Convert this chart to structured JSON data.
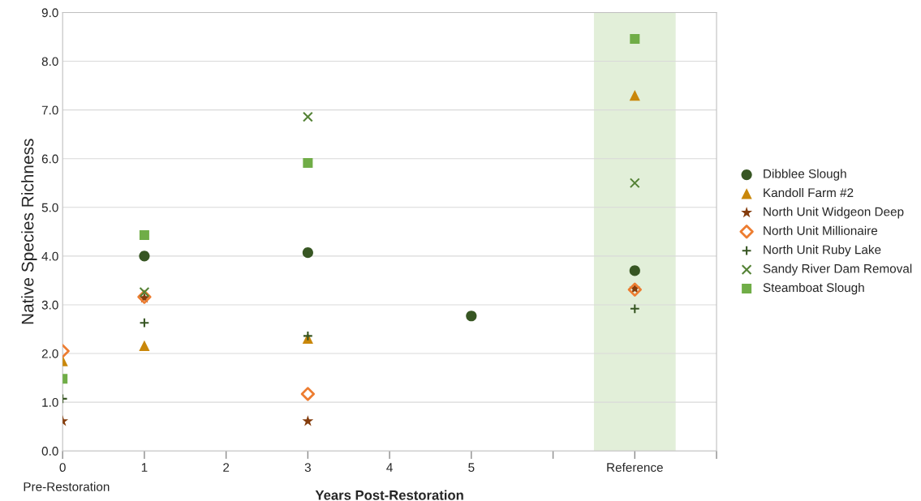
{
  "chart_data": {
    "type": "scatter",
    "xlabel": "Years Post-Restoration",
    "ylabel": "Native Species Richness",
    "annotations": [
      "Pre-Restoration"
    ],
    "xlim": [
      0,
      8
    ],
    "xticks": [
      0,
      1,
      2,
      3,
      4,
      5,
      {
        "value": 6,
        "label": null
      },
      {
        "value": 7,
        "label": "Reference"
      },
      {
        "value": 8,
        "label": null
      }
    ],
    "ylim": [
      0,
      9
    ],
    "yticks": [
      {
        "value": 0,
        "label": "0.0"
      },
      {
        "value": 1,
        "label": "1.0"
      },
      {
        "value": 2,
        "label": "2.0"
      },
      {
        "value": 3,
        "label": "3.0"
      },
      {
        "value": 4,
        "label": "4.0"
      },
      {
        "value": 5,
        "label": "5.0"
      },
      {
        "value": 6,
        "label": "6.0"
      },
      {
        "value": 7,
        "label": "7.0"
      },
      {
        "value": 8,
        "label": "8.0"
      },
      {
        "value": 9,
        "label": "9.0"
      }
    ],
    "grid": "y",
    "legend": "right",
    "bands": [
      {
        "axis": "x",
        "from": 6.5,
        "to": 7.5,
        "color": "#e2efd9"
      }
    ],
    "series": [
      {
        "name": "Dibblee Slough",
        "color": "#375623",
        "marker": "circle",
        "x": [
          1,
          3,
          5,
          7
        ],
        "values": [
          4.0,
          4.07,
          2.77,
          3.7
        ]
      },
      {
        "name": "Kandoll Farm #2",
        "color": "#c9870a",
        "marker": "triangle",
        "x": [
          0,
          1,
          3,
          7
        ],
        "values": [
          1.85,
          2.16,
          2.31,
          7.3
        ]
      },
      {
        "name": "North Unit Widgeon Deep",
        "color": "#843c0c",
        "marker": "star",
        "x": [
          0,
          1,
          3,
          7
        ],
        "values": [
          0.61,
          3.14,
          0.61,
          3.33
        ]
      },
      {
        "name": "North Unit Millionaire",
        "color": "#ed7d31",
        "marker": "diamond",
        "x": [
          0,
          1,
          3,
          7
        ],
        "values": [
          2.05,
          3.16,
          1.17,
          3.31
        ]
      },
      {
        "name": "North Unit Ruby Lake",
        "color": "#375623",
        "marker": "cross",
        "x": [
          0,
          1,
          3,
          7
        ],
        "values": [
          1.07,
          2.63,
          2.36,
          2.92
        ]
      },
      {
        "name": "Sandy River Dam Removal",
        "color": "#548235",
        "marker": "x",
        "x": [
          1,
          3,
          7
        ],
        "values": [
          3.26,
          6.86,
          5.5
        ]
      },
      {
        "name": "Steamboat Slough",
        "color": "#70ad47",
        "marker": "square",
        "x": [
          0,
          1,
          3,
          7
        ],
        "values": [
          1.48,
          4.43,
          5.91,
          8.46
        ]
      }
    ]
  }
}
